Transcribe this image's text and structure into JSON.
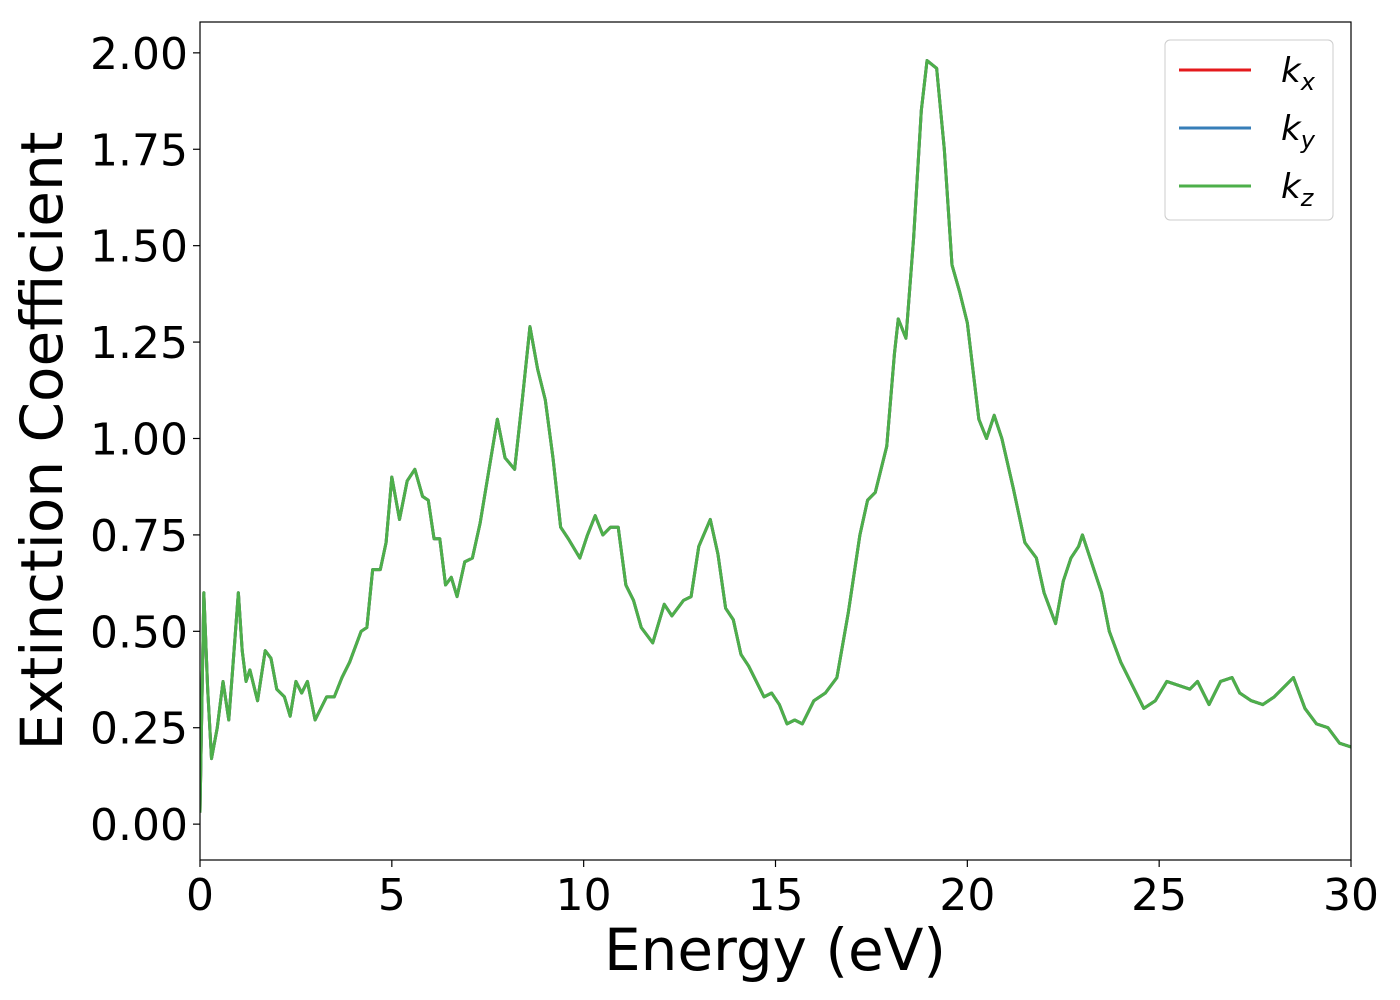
{
  "chart_data": {
    "type": "line",
    "xlabel": "Energy (eV)",
    "ylabel": "Extinction Coefficient",
    "x": [
      0,
      0.1,
      0.2,
      0.3,
      0.45,
      0.6,
      0.75,
      0.85,
      1.0,
      1.1,
      1.2,
      1.3,
      1.5,
      1.7,
      1.85,
      2.0,
      2.2,
      2.35,
      2.5,
      2.65,
      2.8,
      3.0,
      3.3,
      3.5,
      3.7,
      3.9,
      4.2,
      4.35,
      4.5,
      4.7,
      4.85,
      5.0,
      5.2,
      5.4,
      5.6,
      5.8,
      5.95,
      6.1,
      6.25,
      6.4,
      6.55,
      6.7,
      6.9,
      7.1,
      7.3,
      7.5,
      7.75,
      7.95,
      8.2,
      8.4,
      8.6,
      8.8,
      9.0,
      9.2,
      9.4,
      9.6,
      9.9,
      10.1,
      10.3,
      10.5,
      10.7,
      10.9,
      11.1,
      11.3,
      11.5,
      11.8,
      12.1,
      12.3,
      12.6,
      12.8,
      13.0,
      13.3,
      13.5,
      13.7,
      13.9,
      14.1,
      14.3,
      14.5,
      14.7,
      14.9,
      15.1,
      15.3,
      15.5,
      15.7,
      16.0,
      16.3,
      16.6,
      16.9,
      17.2,
      17.4,
      17.6,
      17.9,
      18.1,
      18.2,
      18.4,
      18.6,
      18.8,
      18.95,
      19.2,
      19.4,
      19.6,
      19.8,
      20.0,
      20.3,
      20.5,
      20.7,
      20.9,
      21.2,
      21.5,
      21.8,
      22.0,
      22.3,
      22.5,
      22.7,
      22.9,
      23.0,
      23.2,
      23.5,
      23.7,
      24.0,
      24.3,
      24.6,
      24.9,
      25.2,
      25.5,
      25.8,
      26.0,
      26.3,
      26.6,
      26.9,
      27.1,
      27.4,
      27.7,
      28.0,
      28.3,
      28.5,
      28.8,
      29.1,
      29.4,
      29.7,
      30.0
    ],
    "series": [
      {
        "name": "kx",
        "color": "#e41a1c",
        "values": [
          0.03,
          0.6,
          0.35,
          0.17,
          0.25,
          0.37,
          0.27,
          0.4,
          0.6,
          0.45,
          0.37,
          0.4,
          0.32,
          0.45,
          0.43,
          0.35,
          0.33,
          0.28,
          0.37,
          0.34,
          0.37,
          0.27,
          0.33,
          0.33,
          0.38,
          0.42,
          0.5,
          0.51,
          0.66,
          0.66,
          0.73,
          0.9,
          0.79,
          0.89,
          0.92,
          0.85,
          0.84,
          0.74,
          0.74,
          0.62,
          0.64,
          0.59,
          0.68,
          0.69,
          0.78,
          0.9,
          1.05,
          0.95,
          0.92,
          1.1,
          1.29,
          1.18,
          1.1,
          0.95,
          0.77,
          0.74,
          0.69,
          0.75,
          0.8,
          0.75,
          0.77,
          0.77,
          0.62,
          0.58,
          0.51,
          0.47,
          0.57,
          0.54,
          0.58,
          0.59,
          0.72,
          0.79,
          0.7,
          0.56,
          0.53,
          0.44,
          0.41,
          0.37,
          0.33,
          0.34,
          0.31,
          0.26,
          0.27,
          0.26,
          0.32,
          0.34,
          0.38,
          0.55,
          0.75,
          0.84,
          0.86,
          0.98,
          1.22,
          1.31,
          1.26,
          1.52,
          1.85,
          1.98,
          1.96,
          1.75,
          1.45,
          1.38,
          1.3,
          1.05,
          1.0,
          1.06,
          1.0,
          0.87,
          0.73,
          0.69,
          0.6,
          0.52,
          0.63,
          0.69,
          0.72,
          0.75,
          0.69,
          0.6,
          0.5,
          0.42,
          0.36,
          0.3,
          0.32,
          0.37,
          0.36,
          0.35,
          0.37,
          0.31,
          0.37,
          0.38,
          0.34,
          0.32,
          0.31,
          0.33,
          0.36,
          0.38,
          0.3,
          0.26,
          0.25,
          0.21,
          0.2
        ]
      },
      {
        "name": "ky",
        "color": "#377eb8",
        "values": [
          0.03,
          0.6,
          0.35,
          0.17,
          0.25,
          0.37,
          0.27,
          0.4,
          0.6,
          0.45,
          0.37,
          0.4,
          0.32,
          0.45,
          0.43,
          0.35,
          0.33,
          0.28,
          0.37,
          0.34,
          0.37,
          0.27,
          0.33,
          0.33,
          0.38,
          0.42,
          0.5,
          0.51,
          0.66,
          0.66,
          0.73,
          0.9,
          0.79,
          0.89,
          0.92,
          0.85,
          0.84,
          0.74,
          0.74,
          0.62,
          0.64,
          0.59,
          0.68,
          0.69,
          0.78,
          0.9,
          1.05,
          0.95,
          0.92,
          1.1,
          1.29,
          1.18,
          1.1,
          0.95,
          0.77,
          0.74,
          0.69,
          0.75,
          0.8,
          0.75,
          0.77,
          0.77,
          0.62,
          0.58,
          0.51,
          0.47,
          0.57,
          0.54,
          0.58,
          0.59,
          0.72,
          0.79,
          0.7,
          0.56,
          0.53,
          0.44,
          0.41,
          0.37,
          0.33,
          0.34,
          0.31,
          0.26,
          0.27,
          0.26,
          0.32,
          0.34,
          0.38,
          0.55,
          0.75,
          0.84,
          0.86,
          0.98,
          1.22,
          1.31,
          1.26,
          1.52,
          1.85,
          1.98,
          1.96,
          1.75,
          1.45,
          1.38,
          1.3,
          1.05,
          1.0,
          1.06,
          1.0,
          0.87,
          0.73,
          0.69,
          0.6,
          0.52,
          0.63,
          0.69,
          0.72,
          0.75,
          0.69,
          0.6,
          0.5,
          0.42,
          0.36,
          0.3,
          0.32,
          0.37,
          0.36,
          0.35,
          0.37,
          0.31,
          0.37,
          0.38,
          0.34,
          0.32,
          0.31,
          0.33,
          0.36,
          0.38,
          0.3,
          0.26,
          0.25,
          0.21,
          0.2
        ]
      },
      {
        "name": "kz",
        "color": "#4daf4a",
        "values": [
          0.03,
          0.6,
          0.35,
          0.17,
          0.25,
          0.37,
          0.27,
          0.4,
          0.6,
          0.45,
          0.37,
          0.4,
          0.32,
          0.45,
          0.43,
          0.35,
          0.33,
          0.28,
          0.37,
          0.34,
          0.37,
          0.27,
          0.33,
          0.33,
          0.38,
          0.42,
          0.5,
          0.51,
          0.66,
          0.66,
          0.73,
          0.9,
          0.79,
          0.89,
          0.92,
          0.85,
          0.84,
          0.74,
          0.74,
          0.62,
          0.64,
          0.59,
          0.68,
          0.69,
          0.78,
          0.9,
          1.05,
          0.95,
          0.92,
          1.1,
          1.29,
          1.18,
          1.1,
          0.95,
          0.77,
          0.74,
          0.69,
          0.75,
          0.8,
          0.75,
          0.77,
          0.77,
          0.62,
          0.58,
          0.51,
          0.47,
          0.57,
          0.54,
          0.58,
          0.59,
          0.72,
          0.79,
          0.7,
          0.56,
          0.53,
          0.44,
          0.41,
          0.37,
          0.33,
          0.34,
          0.31,
          0.26,
          0.27,
          0.26,
          0.32,
          0.34,
          0.38,
          0.55,
          0.75,
          0.84,
          0.86,
          0.98,
          1.22,
          1.31,
          1.26,
          1.52,
          1.85,
          1.98,
          1.96,
          1.75,
          1.45,
          1.38,
          1.3,
          1.05,
          1.0,
          1.06,
          1.0,
          0.87,
          0.73,
          0.69,
          0.6,
          0.52,
          0.63,
          0.69,
          0.72,
          0.75,
          0.69,
          0.6,
          0.5,
          0.42,
          0.36,
          0.3,
          0.32,
          0.37,
          0.36,
          0.35,
          0.37,
          0.31,
          0.37,
          0.38,
          0.34,
          0.32,
          0.31,
          0.33,
          0.36,
          0.38,
          0.3,
          0.26,
          0.25,
          0.21,
          0.2
        ]
      }
    ],
    "xlim": [
      0,
      30
    ],
    "xticks": [
      0,
      5,
      10,
      15,
      20,
      25,
      30
    ],
    "ylim": [
      -0.093,
      2.08
    ],
    "yticks": [
      {
        "value": 0,
        "label": "0.00"
      },
      {
        "value": 0.25,
        "label": "0.25"
      },
      {
        "value": 0.5,
        "label": "0.50"
      },
      {
        "value": 0.75,
        "label": "0.75"
      },
      {
        "value": 1,
        "label": "1.00"
      },
      {
        "value": 1.25,
        "label": "1.25"
      },
      {
        "value": 1.5,
        "label": "1.50"
      },
      {
        "value": 1.75,
        "label": "1.75"
      },
      {
        "value": 2,
        "label": "2.00"
      }
    ],
    "grid": false,
    "legend": "upper right"
  }
}
